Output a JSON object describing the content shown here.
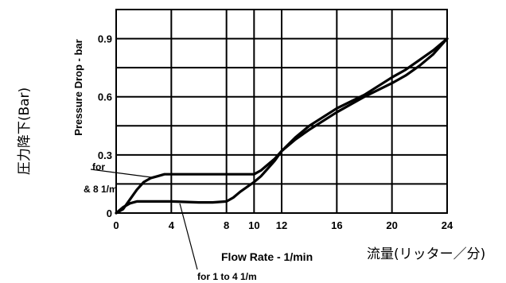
{
  "chart_data": {
    "type": "line",
    "xlabel": "Flow Rate - 1/min",
    "ylabel": "Pressure Drop - bar",
    "xlabel_jp": "流量(リッター／分)",
    "ylabel_jp": "圧力降下(Bar)",
    "xlim": [
      0,
      24
    ],
    "ylim": [
      0,
      1.05
    ],
    "grid": true,
    "x_ticks": [
      0,
      4,
      8,
      10,
      12,
      16,
      20,
      24
    ],
    "y_ticks": [
      0,
      0.3,
      0.6,
      0.9
    ],
    "x_tick_labels": [
      "0",
      "4",
      "8",
      "10",
      "12",
      "16",
      "20",
      "24"
    ],
    "y_tick_labels": [
      "0",
      "0.3",
      "0.6",
      "0.9"
    ],
    "series": [
      {
        "name": "for 8 1/m",
        "annotation_lines": [
          "for",
          "& 8 1/m"
        ],
        "x": [
          0,
          0.5,
          1,
          1.5,
          2,
          2.5,
          3,
          3.5,
          4,
          5,
          6,
          8,
          10,
          10.5,
          11,
          11.5,
          12,
          13,
          14,
          16,
          18,
          20,
          21,
          22,
          23,
          24
        ],
        "y": [
          0,
          0.02,
          0.07,
          0.12,
          0.16,
          0.18,
          0.19,
          0.2,
          0.2,
          0.2,
          0.2,
          0.2,
          0.2,
          0.22,
          0.25,
          0.28,
          0.32,
          0.38,
          0.43,
          0.52,
          0.6,
          0.67,
          0.71,
          0.76,
          0.82,
          0.9
        ]
      },
      {
        "name": "for 1 to 4 1/m",
        "annotation_lines": [
          "for 1 to 4 1/m"
        ],
        "x": [
          0,
          0.5,
          1,
          1.5,
          2,
          3,
          4,
          6,
          7,
          8,
          8.5,
          9,
          10,
          10.5,
          11,
          11.5,
          12,
          13,
          14,
          16,
          18,
          20,
          21,
          22,
          23,
          24
        ],
        "y": [
          0,
          0.03,
          0.05,
          0.06,
          0.06,
          0.06,
          0.06,
          0.055,
          0.055,
          0.06,
          0.08,
          0.11,
          0.16,
          0.19,
          0.23,
          0.27,
          0.32,
          0.39,
          0.45,
          0.54,
          0.61,
          0.7,
          0.74,
          0.79,
          0.84,
          0.9
        ]
      }
    ]
  }
}
